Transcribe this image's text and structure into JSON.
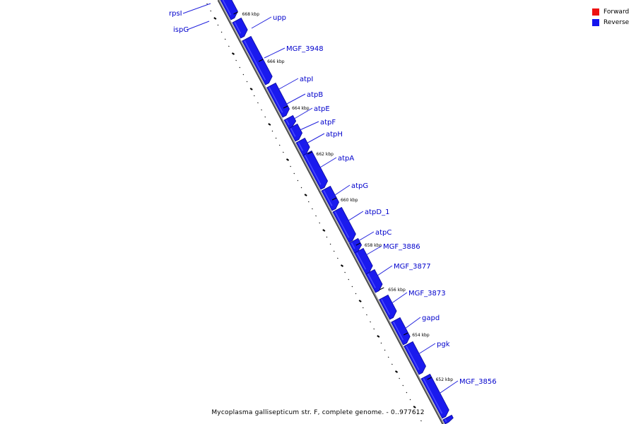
{
  "legend": {
    "forward": {
      "label": "Forward",
      "color": "#ee1111"
    },
    "reverse": {
      "label": "Reverse",
      "color": "#1515ee"
    }
  },
  "caption": "Mycoplasma gallisepticum str. F, complete genome. - 0..977612",
  "colors": {
    "gene_fill": "#1a1aee",
    "gene_dark": "#0a0a9a",
    "gene_light": "#4a4aff",
    "backbone": "#999999",
    "backbone_dark": "#444444",
    "label_line": "#2222dd"
  },
  "tick_labels": [
    "668 kbp",
    "666 kbp",
    "664 kbp",
    "662 kbp",
    "660 kbp",
    "658 kbp",
    "656 kbp",
    "654 kbp",
    "652 kbp"
  ],
  "genes": [
    {
      "name": "rpsI",
      "side": "left"
    },
    {
      "name": "ispG",
      "side": "left"
    },
    {
      "name": "upp",
      "side": "right"
    },
    {
      "name": "MGF_3948",
      "side": "right"
    },
    {
      "name": "atpI",
      "side": "right"
    },
    {
      "name": "atpB",
      "side": "right"
    },
    {
      "name": "atpE",
      "side": "right"
    },
    {
      "name": "atpF",
      "side": "right"
    },
    {
      "name": "atpH",
      "side": "right"
    },
    {
      "name": "atpA",
      "side": "right"
    },
    {
      "name": "atpG",
      "side": "right"
    },
    {
      "name": "atpD_1",
      "side": "right"
    },
    {
      "name": "atpC",
      "side": "right"
    },
    {
      "name": "MGF_3886",
      "side": "right"
    },
    {
      "name": "MGF_3877",
      "side": "right"
    },
    {
      "name": "MGF_3873",
      "side": "right"
    },
    {
      "name": "gapd",
      "side": "right"
    },
    {
      "name": "pgk",
      "side": "right"
    },
    {
      "name": "MGF_3856",
      "side": "right"
    }
  ]
}
